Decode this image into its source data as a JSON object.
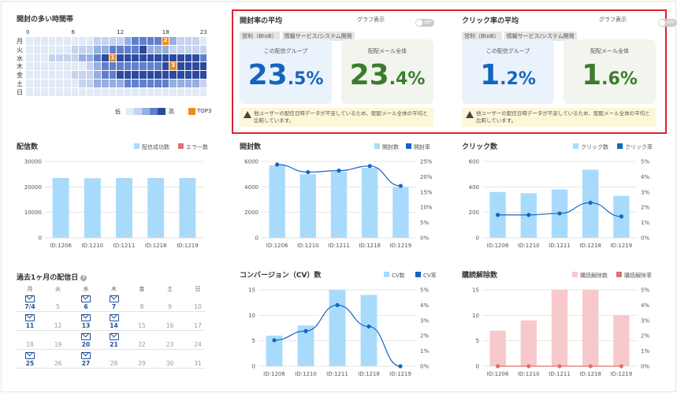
{
  "heatmap": {
    "title": "開封の多い時間帯",
    "hour_ticks": [
      "0",
      "6",
      "12",
      "18",
      "23"
    ],
    "days": [
      "月",
      "火",
      "水",
      "木",
      "金",
      "土",
      "日"
    ],
    "levels": [
      [
        1,
        1,
        1,
        1,
        1,
        1,
        1,
        1,
        1,
        2,
        2,
        2,
        2,
        3,
        4,
        4,
        4,
        4,
        3,
        3,
        2,
        2,
        2,
        1
      ],
      [
        1,
        1,
        1,
        1,
        1,
        1,
        2,
        2,
        2,
        3,
        3,
        4,
        4,
        4,
        4,
        5,
        3,
        3,
        3,
        2,
        2,
        2,
        2,
        2
      ],
      [
        1,
        1,
        1,
        2,
        2,
        2,
        2,
        3,
        3,
        4,
        5,
        5,
        5,
        5,
        5,
        5,
        5,
        5,
        5,
        5,
        5,
        5,
        5,
        4
      ],
      [
        1,
        1,
        1,
        1,
        1,
        1,
        1,
        1,
        2,
        3,
        4,
        4,
        4,
        4,
        4,
        4,
        4,
        4,
        5,
        5,
        5,
        5,
        5,
        5
      ],
      [
        1,
        1,
        1,
        1,
        1,
        1,
        2,
        2,
        2,
        3,
        4,
        4,
        5,
        5,
        5,
        5,
        5,
        5,
        5,
        5,
        5,
        5,
        5,
        5
      ],
      [
        1,
        1,
        1,
        1,
        1,
        1,
        1,
        2,
        2,
        3,
        3,
        3,
        3,
        4,
        4,
        4,
        4,
        4,
        4,
        3,
        3,
        3,
        3,
        2
      ],
      [
        1,
        1,
        1,
        1,
        1,
        1,
        1,
        1,
        1,
        1,
        1,
        1,
        1,
        1,
        1,
        1,
        1,
        1,
        1,
        1,
        1,
        1,
        1,
        1
      ]
    ],
    "top3": [
      {
        "day": 2,
        "hour": 11,
        "rank": "1"
      },
      {
        "day": 0,
        "hour": 18,
        "rank": "2"
      },
      {
        "day": 3,
        "hour": 19,
        "rank": "3"
      }
    ],
    "legend_low": "低",
    "legend_high": "高",
    "legend_top3": "TOP3",
    "colors": [
      "#ffffff",
      "#e3eaf7",
      "#c5d3ef",
      "#96aee0",
      "#5f80cb",
      "#2c4a9f"
    ],
    "top3_color": "#f08a1c"
  },
  "open_avg": {
    "title": "開封率の平均",
    "graph_toggle_label": "グラフ表示",
    "toggle_state": "OFF",
    "tags": [
      "営利（BtoB）",
      "情報サービス/システム開発"
    ],
    "group_label": "この配信グループ",
    "all_label": "配配メール全体",
    "group_int": "23",
    "group_dec": ".5%",
    "all_int": "23",
    "all_dec": ".4%",
    "warning": "他ユーザーの配信日時データが不足しているため、配配メール全体の平均と比較しています。"
  },
  "click_avg": {
    "title": "クリック率の平均",
    "graph_toggle_label": "グラフ表示",
    "toggle_state": "OFF",
    "tags": [
      "営利（BtoB）",
      "情報サービス/システム開発"
    ],
    "group_label": "この配信グループ",
    "all_label": "配配メール全体",
    "group_int": "1",
    "group_dec": ".2%",
    "all_int": "1",
    "all_dec": ".6%",
    "warning": "他ユーザーの配信日時データが不足しているため、配配メール全体の平均と比較しています。"
  },
  "colors": {
    "blue_text": "#1565c0",
    "green_text": "#3a7d2c",
    "bar": "#a8dbfb",
    "line": "#1565c0",
    "pink": "#f7c9ca",
    "red": "#e07070"
  },
  "chart_data": [
    {
      "type": "bar",
      "title": "配信数",
      "categories": [
        "ID:1206",
        "ID:1210",
        "ID:1211",
        "ID:1218",
        "ID:1219"
      ],
      "series": [
        {
          "name": "配信成功数",
          "values": [
            23500,
            23400,
            23500,
            23500,
            23500
          ]
        },
        {
          "name": "エラー数",
          "values": [
            0,
            0,
            0,
            0,
            0
          ]
        }
      ],
      "left_ticks": [
        "0",
        "10000",
        "20000",
        "30000"
      ],
      "ylim": [
        0,
        30000
      ]
    },
    {
      "type": "bar+line",
      "title": "開封数",
      "categories": [
        "ID:1206",
        "ID:1210",
        "ID:1211",
        "ID:1218",
        "ID:1219"
      ],
      "series": [
        {
          "name": "開封数",
          "values": [
            5700,
            5000,
            5200,
            5500,
            4000
          ]
        },
        {
          "name": "開封率",
          "values": [
            24,
            21.5,
            22,
            23.5,
            17
          ]
        }
      ],
      "left_ticks": [
        "0",
        "2000",
        "4000",
        "6000"
      ],
      "right_ticks": [
        "0%",
        "5%",
        "10%",
        "15%",
        "20%",
        "25%"
      ],
      "ylim": [
        0,
        6000
      ],
      "y2lim": [
        0,
        25
      ]
    },
    {
      "type": "bar+line",
      "title": "クリック数",
      "categories": [
        "ID:1206",
        "ID:1210",
        "ID:1211",
        "ID:1218",
        "ID:1219"
      ],
      "series": [
        {
          "name": "クリック数",
          "values": [
            360,
            350,
            380,
            535,
            330
          ]
        },
        {
          "name": "クリック率",
          "values": [
            1.5,
            1.5,
            1.6,
            2.3,
            1.4
          ]
        }
      ],
      "left_ticks": [
        "0",
        "200",
        "400",
        "600"
      ],
      "right_ticks": [
        "0%",
        "1%",
        "2%",
        "3%",
        "4%",
        "5%"
      ],
      "ylim": [
        0,
        600
      ],
      "y2lim": [
        0,
        5
      ]
    },
    {
      "type": "bar+line",
      "title": "コンバージョン（CV）数",
      "categories": [
        "ID:1206",
        "ID:1210",
        "ID:1211",
        "ID:1218",
        "ID:1219"
      ],
      "series": [
        {
          "name": "CV数",
          "values": [
            6,
            8,
            15,
            14,
            0
          ]
        },
        {
          "name": "CV率",
          "values": [
            1.7,
            2.3,
            4.0,
            2.6,
            0
          ]
        }
      ],
      "left_ticks": [
        "0",
        "5",
        "10",
        "15"
      ],
      "right_ticks": [
        "0%",
        "1%",
        "2%",
        "3%",
        "4%",
        "5%"
      ],
      "ylim": [
        0,
        15
      ],
      "y2lim": [
        0,
        5
      ]
    },
    {
      "type": "bar+line",
      "title": "購読解除数",
      "categories": [
        "ID:1206",
        "ID:1210",
        "ID:1211",
        "ID:1218",
        "ID:1219"
      ],
      "series": [
        {
          "name": "購読解除数",
          "values": [
            7,
            9,
            15,
            15,
            10
          ]
        },
        {
          "name": "購読解除率",
          "values": [
            0,
            0,
            0,
            0,
            0
          ]
        }
      ],
      "left_ticks": [
        "0",
        "5",
        "10",
        "15"
      ],
      "right_ticks": [
        "0%",
        "1%",
        "2%",
        "3%",
        "4%",
        "5%"
      ],
      "ylim": [
        0,
        15
      ],
      "y2lim": [
        0,
        5
      ]
    }
  ],
  "calendar": {
    "title": "過去1ヶ月の配信日",
    "weekdays": [
      "月",
      "火",
      "水",
      "木",
      "金",
      "土",
      "日"
    ],
    "rows": [
      [
        {
          "d": "7/4",
          "m": true
        },
        {
          "d": "5",
          "m": false
        },
        {
          "d": "6",
          "m": true
        },
        {
          "d": "7",
          "m": true
        },
        {
          "d": "8",
          "m": false
        },
        {
          "d": "9",
          "m": false
        },
        {
          "d": "10",
          "m": false
        }
      ],
      [
        {
          "d": "11",
          "m": true
        },
        {
          "d": "12",
          "m": false
        },
        {
          "d": "13",
          "m": true
        },
        {
          "d": "14",
          "m": true
        },
        {
          "d": "15",
          "m": false
        },
        {
          "d": "16",
          "m": false
        },
        {
          "d": "17",
          "m": false
        }
      ],
      [
        {
          "d": "18",
          "m": false
        },
        {
          "d": "19",
          "m": false
        },
        {
          "d": "20",
          "m": true
        },
        {
          "d": "21",
          "m": true
        },
        {
          "d": "22",
          "m": false
        },
        {
          "d": "23",
          "m": false
        },
        {
          "d": "24",
          "m": false
        }
      ],
      [
        {
          "d": "25",
          "m": true
        },
        {
          "d": "26",
          "m": false
        },
        {
          "d": "27",
          "m": true
        },
        {
          "d": "28",
          "m": false
        },
        {
          "d": "29",
          "m": false
        },
        {
          "d": "30",
          "m": false
        },
        {
          "d": "31",
          "m": false
        }
      ]
    ]
  }
}
